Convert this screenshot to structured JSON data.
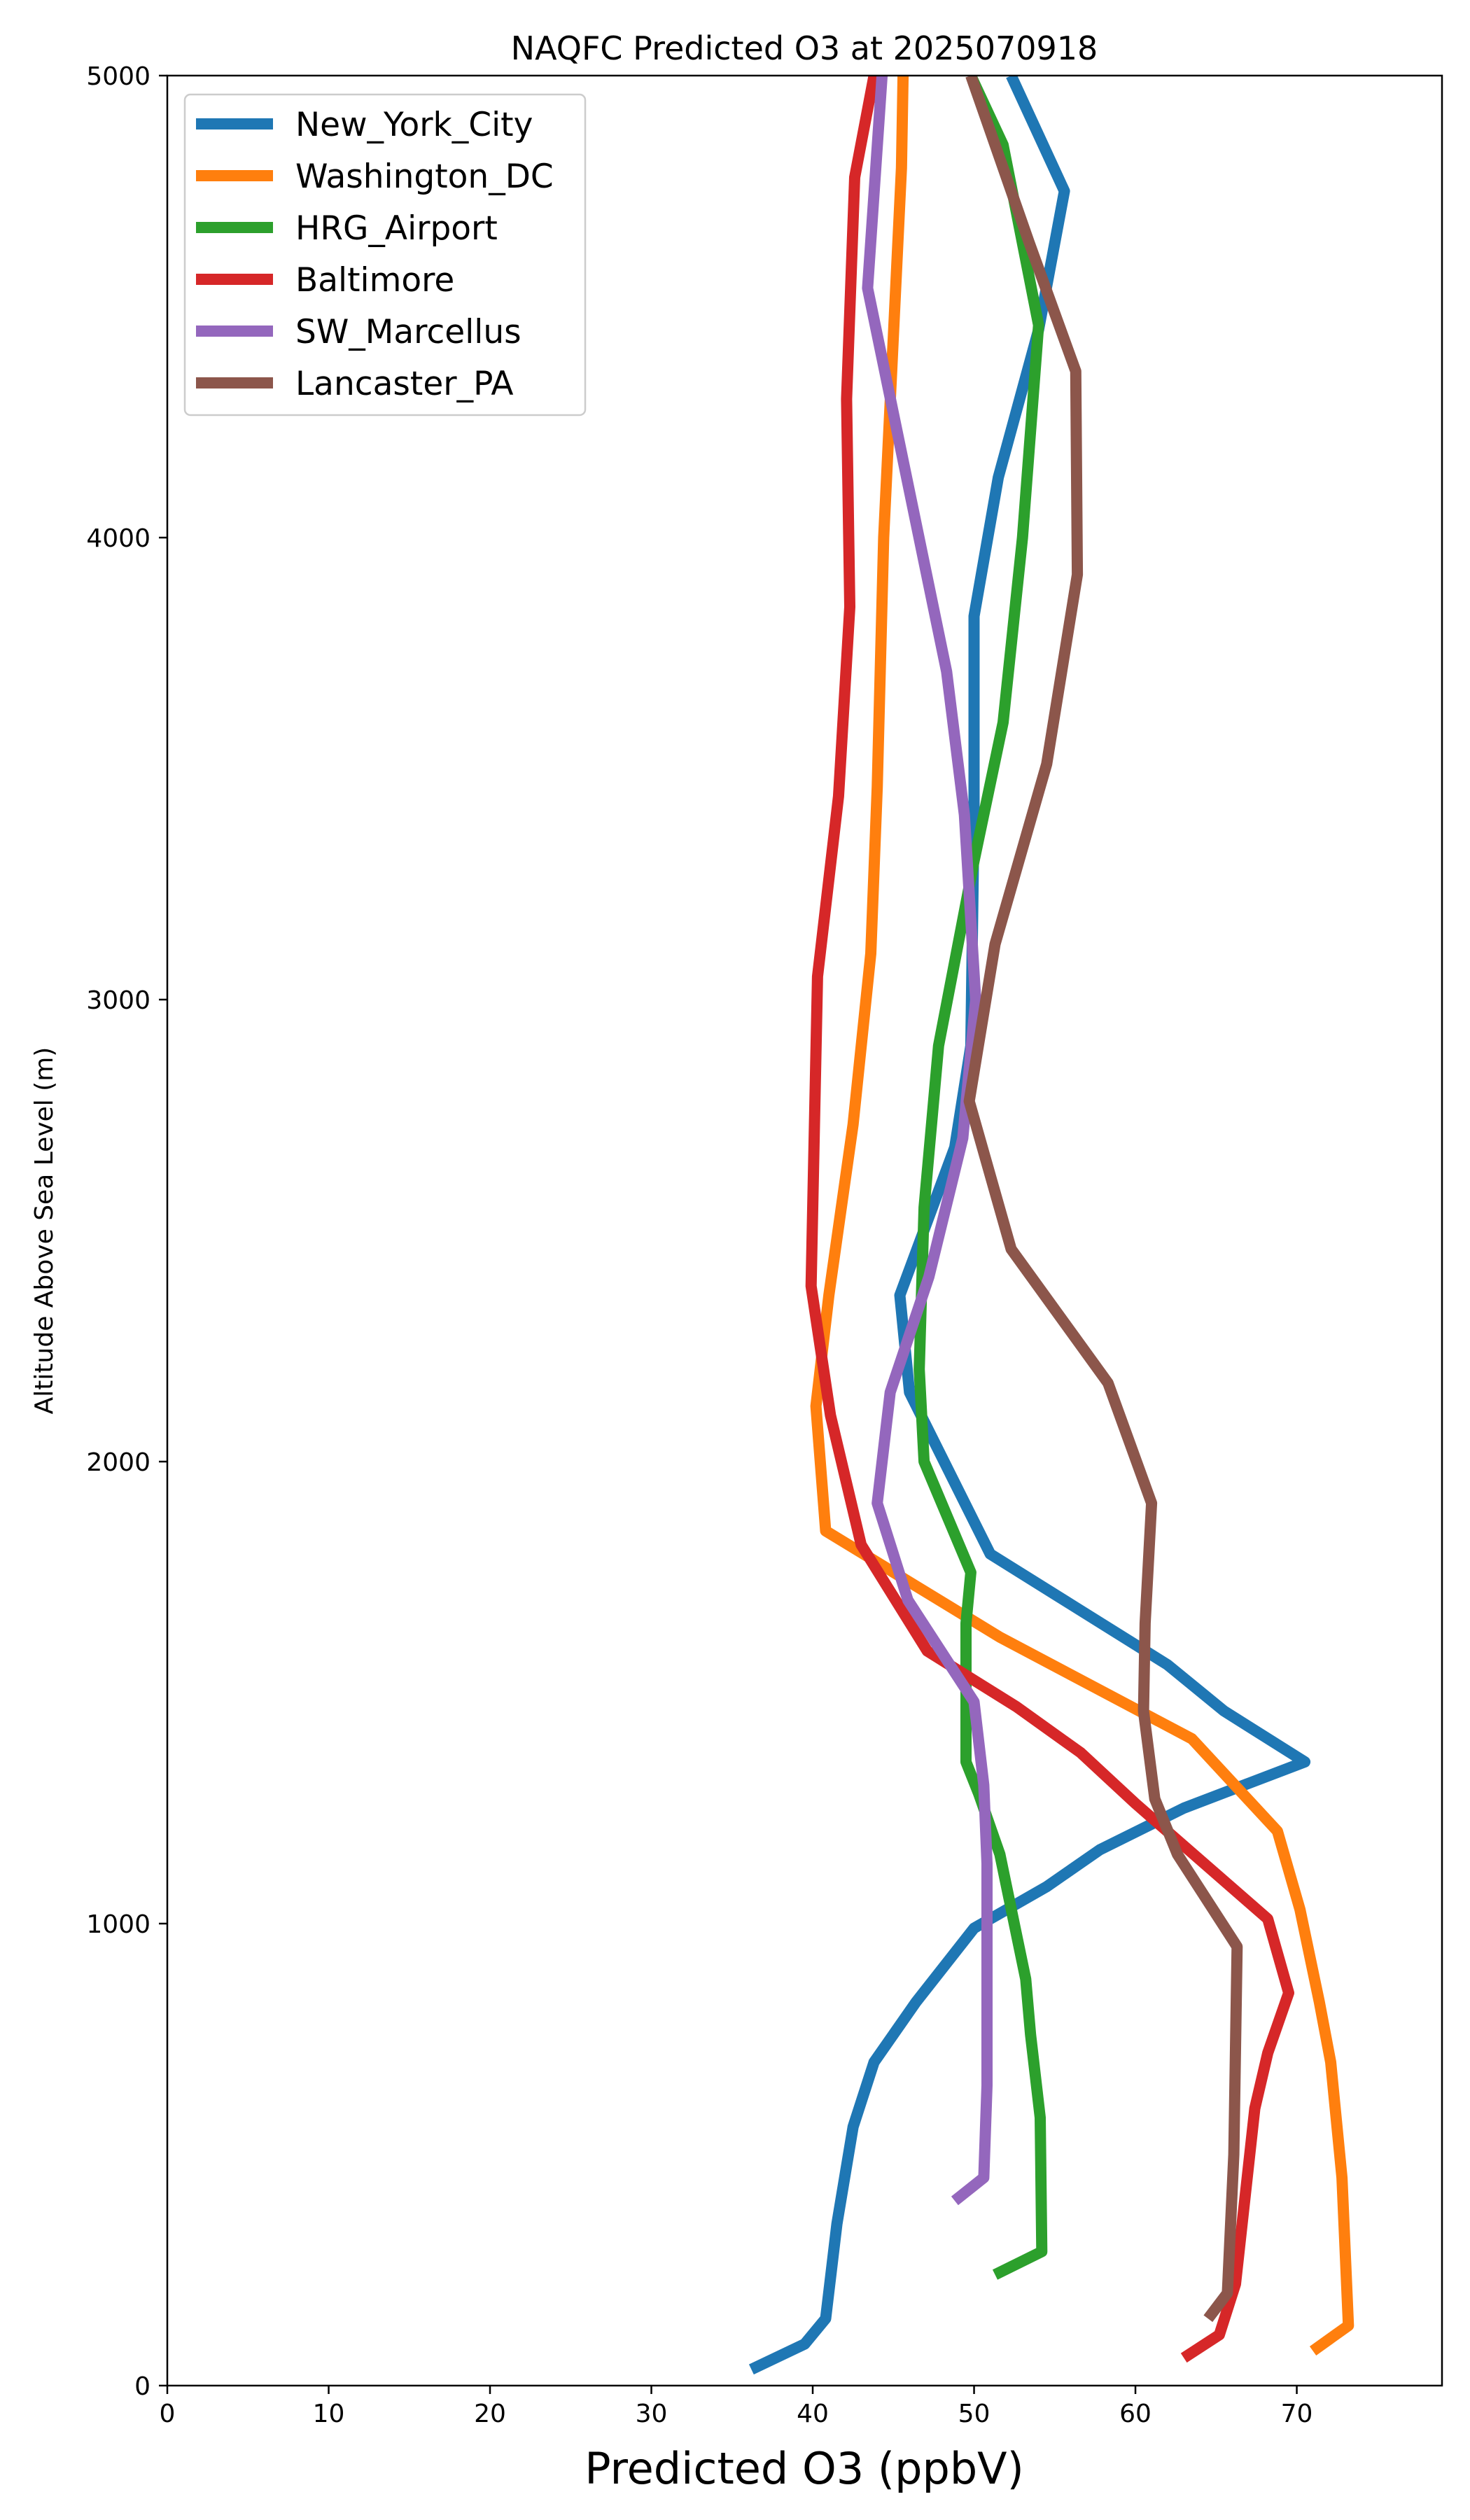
{
  "chart_data": {
    "type": "line",
    "title": "NAQFC Predicted O3 at 2025070918",
    "xlabel": "Predicted O3 (ppbV)",
    "ylabel": "Altitude Above Sea Level (m)",
    "xlim": [
      0,
      79
    ],
    "ylim": [
      0,
      5000
    ],
    "x_ticks": [
      0,
      10,
      20,
      30,
      40,
      50,
      60,
      70
    ],
    "y_ticks": [
      0,
      1000,
      2000,
      3000,
      4000,
      5000
    ],
    "grid": false,
    "legend": "top-left",
    "series": [
      {
        "name": "New_York_City",
        "color": "#1f77b4",
        "points": [
          [
            36.2,
            35
          ],
          [
            39.5,
            90
          ],
          [
            40.8,
            145
          ],
          [
            41.5,
            350
          ],
          [
            42.5,
            560
          ],
          [
            43.8,
            700
          ],
          [
            46.4,
            830
          ],
          [
            50,
            990
          ],
          [
            54.5,
            1080
          ],
          [
            57.8,
            1160
          ],
          [
            63,
            1250
          ],
          [
            70.5,
            1350
          ],
          [
            65.5,
            1460
          ],
          [
            62,
            1560
          ],
          [
            51,
            1800
          ],
          [
            46,
            2150
          ],
          [
            45.4,
            2360
          ],
          [
            48.8,
            2680
          ],
          [
            49.8,
            2900
          ],
          [
            50,
            3400
          ],
          [
            50,
            3830
          ],
          [
            51.5,
            4130
          ],
          [
            54,
            4450
          ],
          [
            55.6,
            4750
          ],
          [
            52.3,
            5000
          ]
        ]
      },
      {
        "name": "Washington_DC",
        "color": "#ff7f0e",
        "points": [
          [
            71,
            75
          ],
          [
            73.2,
            130
          ],
          [
            72.8,
            450
          ],
          [
            72.1,
            700
          ],
          [
            71.4,
            830
          ],
          [
            70.2,
            1030
          ],
          [
            68.8,
            1200
          ],
          [
            63.5,
            1400
          ],
          [
            51.6,
            1620
          ],
          [
            40.8,
            1850
          ],
          [
            40.2,
            2120
          ],
          [
            41,
            2360
          ],
          [
            42.5,
            2730
          ],
          [
            43.6,
            3100
          ],
          [
            44,
            3460
          ],
          [
            44.4,
            4000
          ],
          [
            45.5,
            4800
          ],
          [
            45.6,
            5000
          ]
        ]
      },
      {
        "name": "HRG_Airport",
        "color": "#2ca02c",
        "points": [
          [
            51.3,
            240
          ],
          [
            54.2,
            290
          ],
          [
            54.1,
            580
          ],
          [
            53.5,
            760
          ],
          [
            53.2,
            880
          ],
          [
            51.6,
            1150
          ],
          [
            50.3,
            1280
          ],
          [
            49.5,
            1350
          ],
          [
            49.5,
            1650
          ],
          [
            49.8,
            1760
          ],
          [
            46.9,
            2000
          ],
          [
            46.6,
            2200
          ],
          [
            46.9,
            2550
          ],
          [
            47.8,
            2900
          ],
          [
            50,
            3300
          ],
          [
            51.8,
            3600
          ],
          [
            53,
            4000
          ],
          [
            54,
            4460
          ],
          [
            51.8,
            4850
          ],
          [
            49.8,
            5000
          ]
        ]
      },
      {
        "name": "Baltimore",
        "color": "#d62728",
        "points": [
          [
            63,
            60
          ],
          [
            65.2,
            110
          ],
          [
            66.2,
            220
          ],
          [
            67.4,
            600
          ],
          [
            68.2,
            720
          ],
          [
            69.5,
            850
          ],
          [
            68.2,
            1010
          ],
          [
            60,
            1260
          ],
          [
            56.6,
            1370
          ],
          [
            52.6,
            1470
          ],
          [
            47.1,
            1590
          ],
          [
            43,
            1820
          ],
          [
            41.1,
            2100
          ],
          [
            39.9,
            2380
          ],
          [
            40.3,
            3050
          ],
          [
            41.6,
            3440
          ],
          [
            42.3,
            3850
          ],
          [
            42.1,
            4300
          ],
          [
            42.6,
            4780
          ],
          [
            43.8,
            5000
          ]
        ]
      },
      {
        "name": "SW_Marcellus",
        "color": "#9467bd",
        "points": [
          [
            48.8,
            400
          ],
          [
            50.6,
            450
          ],
          [
            50.8,
            650
          ],
          [
            50.8,
            1000
          ],
          [
            50.8,
            1130
          ],
          [
            50.6,
            1300
          ],
          [
            50,
            1480
          ],
          [
            48.5,
            1560
          ],
          [
            45.9,
            1700
          ],
          [
            44,
            1910
          ],
          [
            44.8,
            2150
          ],
          [
            47.2,
            2400
          ],
          [
            49.3,
            2700
          ],
          [
            50.1,
            3000
          ],
          [
            49.4,
            3400
          ],
          [
            48.3,
            3710
          ],
          [
            43.4,
            4540
          ],
          [
            44.3,
            5000
          ]
        ]
      },
      {
        "name": "Lancaster_PA",
        "color": "#8c564b",
        "points": [
          [
            64.5,
            145
          ],
          [
            65.7,
            200
          ],
          [
            66.1,
            500
          ],
          [
            66.3,
            950
          ],
          [
            62.6,
            1150
          ],
          [
            61.2,
            1270
          ],
          [
            60.5,
            1460
          ],
          [
            60.6,
            1650
          ],
          [
            61,
            1910
          ],
          [
            58.3,
            2170
          ],
          [
            52.3,
            2460
          ],
          [
            49.7,
            2780
          ],
          [
            51.3,
            3120
          ],
          [
            54.5,
            3510
          ],
          [
            56.4,
            3920
          ],
          [
            56.3,
            4360
          ],
          [
            53.4,
            4640
          ],
          [
            49.8,
            5000
          ]
        ]
      }
    ]
  }
}
